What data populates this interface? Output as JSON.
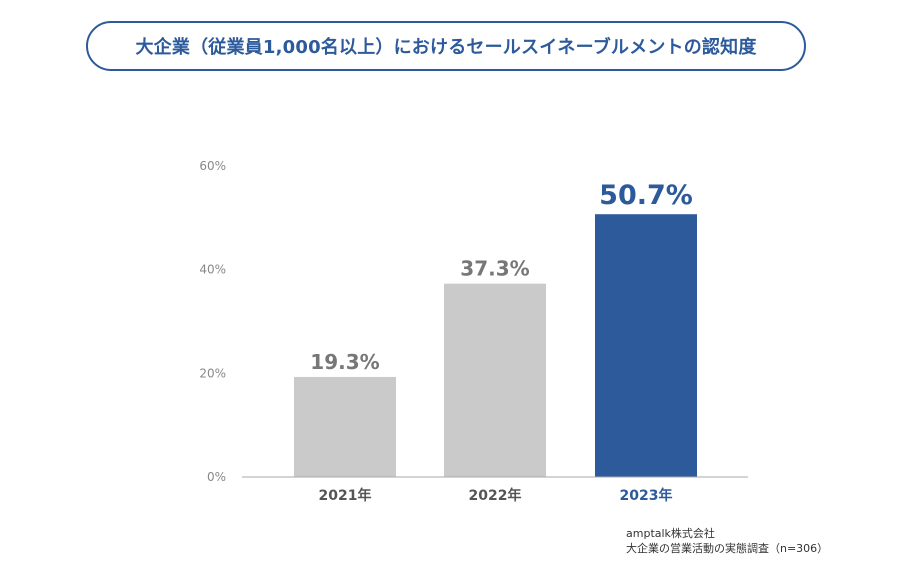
{
  "title": "大企業（従業員1,000名以上）におけるセールスイネーブルメントの認知度",
  "source": {
    "line1": "amptalk株式会社",
    "line2": "大企業の営業活動の実態調査（n=306）"
  },
  "colors": {
    "accent": "#2d5a9b",
    "bar_gray": "#cacaca",
    "value_gray": "#777777",
    "tick_gray": "#888888",
    "axis": "#aaaaaa",
    "category_text": "#555555"
  },
  "chart_data": {
    "type": "bar",
    "categories": [
      "2021年",
      "2022年",
      "2023年"
    ],
    "values": [
      19.3,
      37.3,
      50.7
    ],
    "value_labels": [
      "19.3%",
      "37.3%",
      "50.7%"
    ],
    "highlight_index": 2,
    "yticks": [
      0,
      20,
      40,
      60
    ],
    "ytick_labels": [
      "0%",
      "20%",
      "40%",
      "60%"
    ],
    "ylim": [
      0,
      60
    ],
    "grid": false,
    "title": "大企業（従業員1,000名以上）におけるセールスイネーブルメントの認知度",
    "xlabel": "",
    "ylabel": ""
  }
}
